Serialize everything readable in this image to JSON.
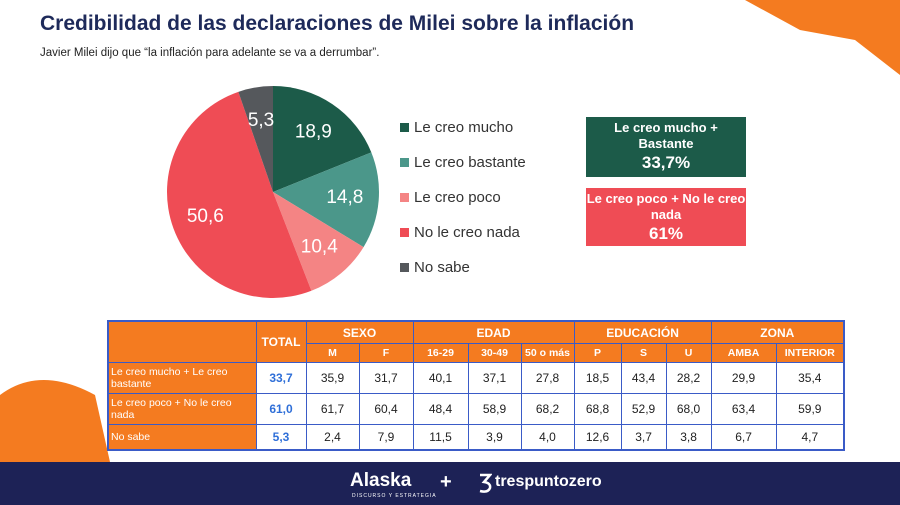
{
  "chart_data": {
    "type": "pie",
    "title": "Credibilidad de las declaraciones de Milei sobre la inflación",
    "subtitle": "Javier Milei dijo que “la inflación para adelante se va a derrumbar”.",
    "categories": [
      "Le creo mucho",
      "Le creo bastante",
      "Le creo poco",
      "No le creo nada",
      "No sabe"
    ],
    "values": [
      18.9,
      14.8,
      10.4,
      50.6,
      5.3
    ],
    "value_labels": [
      "18,9",
      "14,8",
      "10,4",
      "50,6",
      "5,3"
    ],
    "colors": [
      "#1c5b49",
      "#4b978a",
      "#f48484",
      "#ef4c55",
      "#55585c"
    ]
  },
  "summary": [
    {
      "label": "Le creo mucho + Bastante",
      "value": "33,7%",
      "color": "#1c5b49"
    },
    {
      "label": "Le creo poco + No le creo nada",
      "value": "61%",
      "color": "#ef4c55"
    }
  ],
  "table": {
    "total_header": "TOTAL",
    "groups": [
      {
        "label": "SEXO",
        "columns": [
          "M",
          "F"
        ]
      },
      {
        "label": "EDAD",
        "columns": [
          "16-29",
          "30-49",
          "50 o más"
        ]
      },
      {
        "label": "EDUCACIÓN",
        "columns": [
          "P",
          "S",
          "U"
        ]
      },
      {
        "label": "ZONA",
        "columns": [
          "AMBA",
          "INTERIOR"
        ]
      }
    ],
    "rows": [
      {
        "label": "Le creo mucho + Le creo bastante",
        "total": "33,7",
        "cells": [
          "35,9",
          "31,7",
          "40,1",
          "37,1",
          "27,8",
          "18,5",
          "43,4",
          "28,2",
          "29,9",
          "35,4"
        ]
      },
      {
        "label": "Le creo poco + No le creo nada",
        "total": "61,0",
        "cells": [
          "61,7",
          "60,4",
          "48,4",
          "58,9",
          "68,2",
          "68,8",
          "52,9",
          "68,0",
          "63,4",
          "59,9"
        ]
      },
      {
        "label": "No sabe",
        "total": "5,3",
        "cells": [
          "2,4",
          "7,9",
          "11,5",
          "3,9",
          "4,0",
          "12,6",
          "3,7",
          "3,8",
          "6,7",
          "4,7"
        ]
      }
    ]
  },
  "footer": {
    "brand": "Alaska",
    "tagline": "DISCURSO Y ESTRATEGIA",
    "plus": "+",
    "partner": "trespuntozero"
  }
}
